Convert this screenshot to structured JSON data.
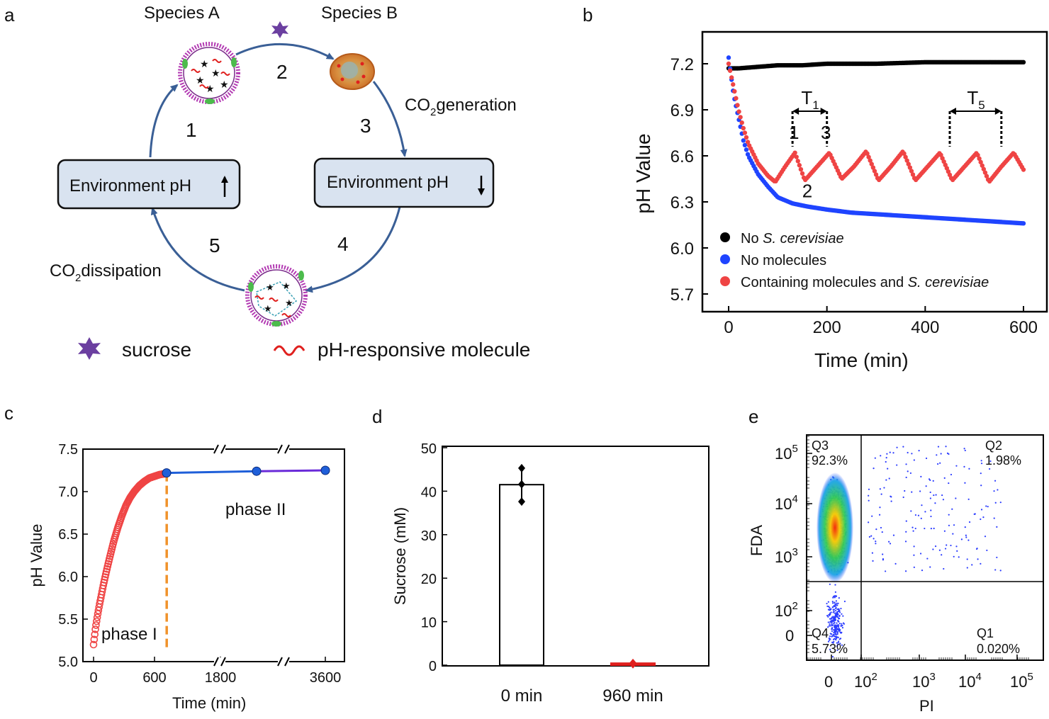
{
  "panels": {
    "a": "a",
    "b": "b",
    "c": "c",
    "d": "d",
    "e": "e"
  },
  "diagram": {
    "species_a": "Species  A",
    "species_b": "Species B",
    "step_numbers": [
      "1",
      "2",
      "3",
      "4",
      "5"
    ],
    "co2_generation": {
      "prefix": "CO",
      "sub": "2",
      "suffix": "generation"
    },
    "co2_dissipation": {
      "prefix": "CO",
      "sub": "2",
      "suffix": "dissipation"
    },
    "env_ph_up": "Environment pH",
    "env_ph_down": "Environment pH",
    "legend_sucrose": "sucrose",
    "legend_molecule": "pH-responsive molecule",
    "colors": {
      "arrow": "#3a5f96",
      "box_fill": "#d9e3f0",
      "sucrose": "#6b3fa0",
      "molecule": "#e0201e"
    }
  },
  "chart_data": [
    {
      "id": "b",
      "type": "scatter",
      "xlabel": "Time (min)",
      "ylabel": "pH Value",
      "xlim": [
        -40,
        620
      ],
      "ylim": [
        5.55,
        7.45
      ],
      "xticks": [
        0,
        200,
        400,
        600
      ],
      "yticks": [
        5.7,
        6.0,
        6.3,
        6.6,
        6.9,
        7.2
      ],
      "series": [
        {
          "name_parts": [
            "No ",
            "S. cerevisiae",
            ""
          ],
          "color": "#000000",
          "x": [
            0,
            20,
            60,
            100,
            150,
            200,
            300,
            400,
            500,
            600
          ],
          "y": [
            7.17,
            7.17,
            7.18,
            7.19,
            7.19,
            7.2,
            7.2,
            7.21,
            7.21,
            7.21
          ]
        },
        {
          "name_parts": [
            "No molecules",
            "",
            ""
          ],
          "color": "#1f44ff",
          "x": [
            0,
            5,
            10,
            20,
            30,
            40,
            60,
            80,
            100,
            130,
            160,
            200,
            250,
            300,
            350,
            400,
            450,
            500,
            550,
            600
          ],
          "y": [
            7.24,
            7.12,
            7.0,
            6.85,
            6.7,
            6.6,
            6.48,
            6.4,
            6.33,
            6.29,
            6.27,
            6.25,
            6.23,
            6.22,
            6.21,
            6.2,
            6.19,
            6.18,
            6.17,
            6.16
          ]
        },
        {
          "name_parts": [
            "Containing molecules and ",
            "S. cerevisiae",
            ""
          ],
          "color": "#ef4444",
          "x": [
            0,
            10,
            20,
            30,
            40,
            60,
            80,
            95,
            115,
            135,
            155,
            180,
            205,
            230,
            255,
            280,
            305,
            330,
            355,
            380,
            405,
            430,
            455,
            480,
            505,
            530,
            555,
            580,
            600
          ],
          "y": [
            7.2,
            7.05,
            6.9,
            6.78,
            6.68,
            6.55,
            6.47,
            6.43,
            6.53,
            6.62,
            6.44,
            6.53,
            6.62,
            6.45,
            6.53,
            6.63,
            6.44,
            6.53,
            6.63,
            6.44,
            6.53,
            6.62,
            6.44,
            6.53,
            6.62,
            6.43,
            6.53,
            6.62,
            6.51
          ]
        }
      ],
      "annotations": {
        "t1": {
          "main": "T",
          "sub": "1",
          "x_from": 130,
          "x_to": 200
        },
        "t5": {
          "main": "T",
          "sub": "5",
          "x_from": 450,
          "x_to": 555
        },
        "point_labels": [
          {
            "text": "1",
            "x": 133,
            "y": 6.71
          },
          {
            "text": "3",
            "x": 198,
            "y": 6.71
          },
          {
            "text": "2",
            "x": 160,
            "y": 6.33
          }
        ]
      }
    },
    {
      "id": "c",
      "type": "scatter",
      "xlabel": "Time (min)",
      "ylabel": "pH Value",
      "ylim": [
        5.0,
        7.5
      ],
      "yticks": [
        5.0,
        5.5,
        6.0,
        6.5,
        7.0,
        7.5
      ],
      "xticks": [
        "0",
        "600",
        "1800",
        "3600"
      ],
      "phase1": {
        "x": [
          0,
          10,
          20,
          40,
          60,
          80,
          100,
          130,
          160,
          200,
          240,
          280,
          320,
          360,
          400,
          450,
          500,
          550,
          600,
          650,
          700
        ],
        "y": [
          5.2,
          5.3,
          5.4,
          5.55,
          5.68,
          5.8,
          5.92,
          6.08,
          6.23,
          6.42,
          6.58,
          6.72,
          6.84,
          6.93,
          7.0,
          7.07,
          7.12,
          7.16,
          7.18,
          7.2,
          7.21
        ]
      },
      "phase2": {
        "x": [
          720,
          2400,
          3600
        ],
        "y": [
          7.22,
          7.24,
          7.25
        ]
      },
      "phase_boundary_x": 720,
      "labels": {
        "phase1": "phase I",
        "phase2": "phase II"
      },
      "colors": {
        "phase1": "#ef4444",
        "phase2": "#1f5fd9",
        "phase2_end": "#6a2bd9",
        "boundary": "#f0922b"
      }
    },
    {
      "id": "d",
      "type": "bar",
      "categories": [
        "0 min",
        "960 min"
      ],
      "values": [
        41.5,
        0.3
      ],
      "points": [
        [
          45.3,
          41.6,
          37.6
        ],
        [
          0.5,
          0.3,
          0.2
        ]
      ],
      "ylabel": "Sucrose (mM)",
      "ylim": [
        0,
        50
      ],
      "yticks": [
        0,
        10,
        20,
        30,
        40,
        50
      ],
      "colors": {
        "bar1": "#ffffff",
        "bar2_stroke": "#e0201e"
      }
    },
    {
      "id": "e",
      "type": "scatter",
      "xlabel": "PI",
      "ylabel": "FDA",
      "xticks": [
        {
          "t": "0"
        },
        {
          "t": "10",
          "e": "2"
        },
        {
          "t": "10",
          "e": "3"
        },
        {
          "t": "10",
          "e": "4"
        },
        {
          "t": "10",
          "e": "5"
        }
      ],
      "yticks": [
        {
          "t": "0"
        },
        {
          "t": "10",
          "e": "2"
        },
        {
          "t": "10",
          "e": "3"
        },
        {
          "t": "10",
          "e": "4"
        },
        {
          "t": "10",
          "e": "5"
        }
      ],
      "quadrants": [
        {
          "name": "Q3",
          "value": "92.3%"
        },
        {
          "name": "Q2",
          "value": "1.98%"
        },
        {
          "name": "Q4",
          "value": "5.73%"
        },
        {
          "name": "Q1",
          "value": "0.020%"
        }
      ]
    }
  ]
}
